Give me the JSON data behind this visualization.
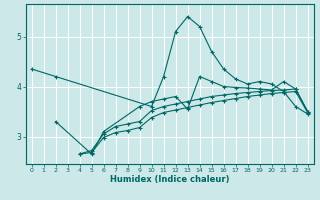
{
  "xlabel": "Humidex (Indice chaleur)",
  "xlim": [
    -0.5,
    23.5
  ],
  "ylim": [
    2.45,
    5.65
  ],
  "bg_color": "#cce8e8",
  "grid_color": "#aadddd",
  "line_color": "#006666",
  "lines": [
    {
      "x": [
        0,
        2,
        10,
        11,
        12,
        13,
        14,
        15,
        16,
        17,
        18,
        19,
        20,
        21,
        22,
        23
      ],
      "y": [
        4.35,
        4.2,
        3.6,
        4.2,
        5.1,
        5.4,
        5.2,
        4.7,
        4.35,
        4.15,
        4.05,
        4.1,
        4.05,
        3.9,
        3.6,
        3.45
      ]
    },
    {
      "x": [
        2,
        5,
        6,
        9,
        10,
        11,
        12,
        13,
        14,
        15,
        16,
        17,
        18,
        19,
        20,
        21,
        22,
        23
      ],
      "y": [
        3.3,
        2.65,
        3.1,
        3.6,
        3.7,
        3.75,
        3.8,
        3.55,
        4.2,
        4.1,
        4.0,
        3.98,
        3.97,
        3.95,
        3.93,
        4.1,
        3.95,
        3.5
      ]
    },
    {
      "x": [
        4,
        5,
        6,
        7,
        8,
        9,
        10,
        11,
        12,
        13,
        14,
        15,
        16,
        17,
        18,
        19,
        20,
        21,
        22,
        23
      ],
      "y": [
        2.65,
        2.72,
        3.05,
        3.2,
        3.25,
        3.3,
        3.52,
        3.6,
        3.65,
        3.7,
        3.75,
        3.8,
        3.83,
        3.86,
        3.88,
        3.9,
        3.92,
        3.93,
        3.95,
        3.5
      ]
    },
    {
      "x": [
        4,
        5,
        6,
        7,
        8,
        9,
        10,
        11,
        12,
        13,
        14,
        15,
        16,
        17,
        18,
        19,
        20,
        21,
        22,
        23
      ],
      "y": [
        2.65,
        2.68,
        2.98,
        3.08,
        3.12,
        3.18,
        3.38,
        3.48,
        3.53,
        3.58,
        3.63,
        3.68,
        3.72,
        3.76,
        3.8,
        3.83,
        3.86,
        3.88,
        3.9,
        3.48
      ]
    }
  ],
  "yticks": [
    3,
    4,
    5
  ],
  "xticks": [
    0,
    1,
    2,
    3,
    4,
    5,
    6,
    7,
    8,
    9,
    10,
    11,
    12,
    13,
    14,
    15,
    16,
    17,
    18,
    19,
    20,
    21,
    22,
    23
  ]
}
